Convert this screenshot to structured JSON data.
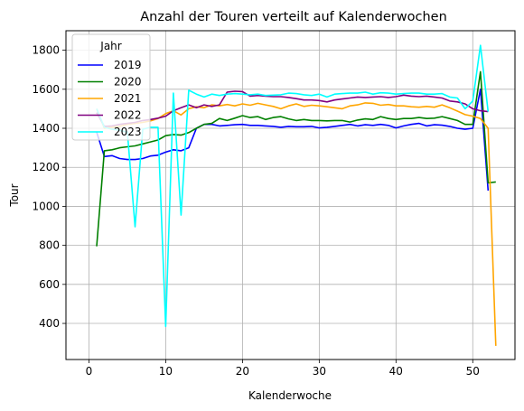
{
  "chart_data": {
    "type": "line",
    "title": "Anzahl der Touren verteilt auf Kalenderwochen",
    "xlabel": "Kalenderwoche",
    "ylabel": "Tour",
    "xlim": [
      -3,
      55.5
    ],
    "ylim": [
      215,
      1900
    ],
    "xticks": [
      0,
      10,
      20,
      30,
      40,
      50
    ],
    "yticks": [
      400,
      600,
      800,
      1000,
      1200,
      1400,
      1600,
      1800
    ],
    "grid": true,
    "legend": {
      "title": "Jahr",
      "placement": "top-left"
    },
    "series": [
      {
        "name": "2019",
        "color": "#0000ff",
        "x": [
          1,
          2,
          3,
          4,
          5,
          6,
          7,
          8,
          9,
          10,
          11,
          12,
          13,
          14,
          15,
          16,
          17,
          18,
          19,
          20,
          21,
          22,
          23,
          24,
          25,
          26,
          27,
          28,
          29,
          30,
          31,
          32,
          33,
          34,
          35,
          36,
          37,
          38,
          39,
          40,
          41,
          42,
          43,
          44,
          45,
          46,
          47,
          48,
          49,
          50,
          51,
          52
        ],
        "values": [
          1380,
          1255,
          1260,
          1245,
          1240,
          1240,
          1245,
          1258,
          1262,
          1278,
          1290,
          1285,
          1300,
          1400,
          1420,
          1420,
          1412,
          1415,
          1418,
          1420,
          1415,
          1415,
          1412,
          1410,
          1405,
          1410,
          1408,
          1408,
          1410,
          1402,
          1405,
          1410,
          1415,
          1420,
          1412,
          1418,
          1415,
          1420,
          1415,
          1402,
          1412,
          1420,
          1425,
          1412,
          1418,
          1416,
          1410,
          1400,
          1395,
          1400,
          1600,
          1080
        ]
      },
      {
        "name": "2020",
        "color": "#008000",
        "x": [
          1,
          2,
          3,
          4,
          5,
          6,
          7,
          8,
          9,
          10,
          11,
          12,
          13,
          14,
          15,
          16,
          17,
          18,
          19,
          20,
          21,
          22,
          23,
          24,
          25,
          26,
          27,
          28,
          29,
          30,
          31,
          32,
          33,
          34,
          35,
          36,
          37,
          38,
          39,
          40,
          41,
          42,
          43,
          44,
          45,
          46,
          47,
          48,
          49,
          50,
          51,
          52,
          53
        ],
        "values": [
          795,
          1285,
          1290,
          1300,
          1305,
          1310,
          1320,
          1330,
          1340,
          1362,
          1368,
          1365,
          1378,
          1400,
          1420,
          1425,
          1450,
          1440,
          1452,
          1465,
          1455,
          1460,
          1445,
          1455,
          1460,
          1448,
          1440,
          1445,
          1440,
          1440,
          1438,
          1440,
          1440,
          1432,
          1442,
          1448,
          1445,
          1460,
          1450,
          1445,
          1450,
          1450,
          1455,
          1450,
          1452,
          1460,
          1450,
          1440,
          1420,
          1420,
          1690,
          1120,
          1125
        ]
      },
      {
        "name": "2021",
        "color": "#ffa500",
        "x": [
          1,
          2,
          3,
          4,
          5,
          6,
          7,
          8,
          9,
          10,
          11,
          12,
          13,
          14,
          15,
          16,
          17,
          18,
          19,
          20,
          21,
          22,
          23,
          24,
          25,
          26,
          27,
          28,
          29,
          30,
          31,
          32,
          33,
          34,
          35,
          36,
          37,
          38,
          39,
          40,
          41,
          42,
          43,
          44,
          45,
          46,
          47,
          48,
          49,
          50,
          51,
          52,
          53
        ],
        "values": [
          1500,
          1400,
          1405,
          1410,
          1420,
          1425,
          1430,
          1438,
          1450,
          1475,
          1490,
          1468,
          1500,
          1510,
          1505,
          1520,
          1515,
          1522,
          1515,
          1525,
          1518,
          1528,
          1520,
          1512,
          1500,
          1515,
          1525,
          1512,
          1518,
          1515,
          1510,
          1505,
          1500,
          1515,
          1520,
          1530,
          1528,
          1518,
          1522,
          1515,
          1515,
          1510,
          1508,
          1512,
          1508,
          1520,
          1505,
          1488,
          1470,
          1462,
          1450,
          1400,
          285
        ]
      },
      {
        "name": "2022",
        "color": "#800080",
        "x": [
          1,
          2,
          3,
          4,
          5,
          6,
          7,
          8,
          9,
          10,
          11,
          12,
          13,
          14,
          15,
          16,
          17,
          18,
          19,
          20,
          21,
          22,
          23,
          24,
          25,
          26,
          27,
          28,
          29,
          30,
          31,
          32,
          33,
          34,
          35,
          36,
          37,
          38,
          39,
          40,
          41,
          42,
          43,
          44,
          45,
          46,
          47,
          48,
          49,
          50,
          51,
          52
        ],
        "values": [
          1480,
          1410,
          1412,
          1420,
          1425,
          1430,
          1440,
          1445,
          1452,
          1462,
          1490,
          1505,
          1520,
          1505,
          1520,
          1512,
          1520,
          1585,
          1590,
          1588,
          1565,
          1568,
          1565,
          1562,
          1562,
          1558,
          1552,
          1545,
          1545,
          1542,
          1535,
          1545,
          1550,
          1555,
          1560,
          1558,
          1560,
          1562,
          1558,
          1562,
          1570,
          1565,
          1562,
          1565,
          1560,
          1555,
          1540,
          1535,
          1525,
          1500,
          1490,
          1485
        ]
      },
      {
        "name": "2023",
        "color": "#00ffff",
        "x": [
          1,
          2,
          3,
          4,
          5,
          6,
          7,
          8,
          9,
          10,
          11,
          12,
          13,
          14,
          15,
          16,
          17,
          18,
          19,
          20,
          21,
          22,
          23,
          24,
          25,
          26,
          27,
          28,
          29,
          30,
          31,
          32,
          33,
          34,
          35,
          36,
          37,
          38,
          39,
          40,
          41,
          42,
          43,
          44,
          45,
          46,
          47,
          48,
          49,
          50,
          51,
          52
        ],
        "values": [
          1500,
          1405,
          1395,
          1390,
          1380,
          895,
          1395,
          1405,
          1405,
          385,
          1580,
          955,
          1595,
          1575,
          1560,
          1575,
          1568,
          1575,
          1578,
          1575,
          1572,
          1575,
          1568,
          1570,
          1572,
          1580,
          1578,
          1572,
          1568,
          1575,
          1560,
          1575,
          1578,
          1580,
          1580,
          1585,
          1575,
          1582,
          1580,
          1575,
          1578,
          1580,
          1580,
          1575,
          1575,
          1578,
          1560,
          1555,
          1500,
          1540,
          1825,
          1485
        ]
      }
    ]
  }
}
